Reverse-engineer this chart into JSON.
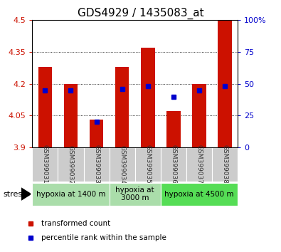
{
  "title": "GDS4929 / 1435083_at",
  "samples": [
    "GSM399031",
    "GSM399032",
    "GSM399033",
    "GSM399034",
    "GSM399035",
    "GSM399036",
    "GSM399037",
    "GSM399038"
  ],
  "red_values": [
    4.28,
    4.2,
    4.03,
    4.28,
    4.37,
    4.07,
    4.2,
    4.5
  ],
  "blue_percentiles": [
    45,
    45,
    20,
    46,
    48,
    40,
    45,
    48
  ],
  "ylim": [
    3.9,
    4.5
  ],
  "yticks": [
    3.9,
    4.05,
    4.2,
    4.35,
    4.5
  ],
  "grid_lines": [
    4.05,
    4.2,
    4.35
  ],
  "right_yticks": [
    0,
    25,
    50,
    75,
    100
  ],
  "right_ylabels": [
    "0",
    "25",
    "50",
    "75",
    "100%"
  ],
  "bar_color": "#cc1100",
  "dot_color": "#0000cc",
  "bar_width": 0.55,
  "group_defs": [
    [
      0,
      2,
      "hypoxia at 1400 m",
      "#aaddaa"
    ],
    [
      3,
      4,
      "hypoxia at\n3000 m",
      "#aaddaa"
    ],
    [
      5,
      7,
      "hypoxia at 4500 m",
      "#55dd55"
    ]
  ],
  "stress_label": "stress",
  "legend_red": "transformed count",
  "legend_blue": "percentile rank within the sample",
  "sample_bg_color": "#cccccc",
  "title_fontsize": 11,
  "tick_fontsize": 8,
  "sample_fontsize": 6.5,
  "group_fontsize": 7.5,
  "legend_fontsize": 7.5
}
